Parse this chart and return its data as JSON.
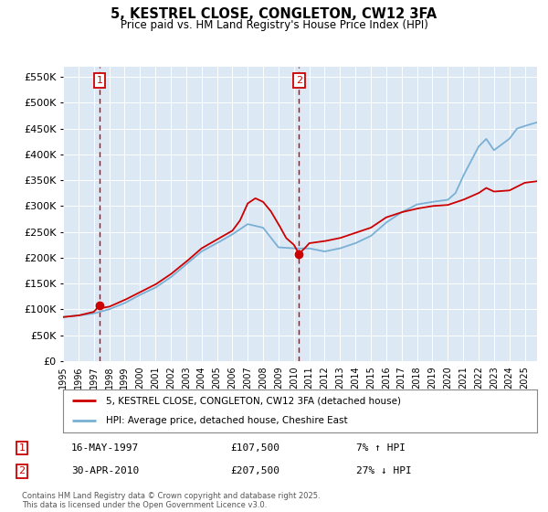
{
  "title": "5, KESTREL CLOSE, CONGLETON, CW12 3FA",
  "subtitle": "Price paid vs. HM Land Registry's House Price Index (HPI)",
  "ylabel_ticks": [
    "£0",
    "£50K",
    "£100K",
    "£150K",
    "£200K",
    "£250K",
    "£300K",
    "£350K",
    "£400K",
    "£450K",
    "£500K",
    "£550K"
  ],
  "ytick_values": [
    0,
    50000,
    100000,
    150000,
    200000,
    250000,
    300000,
    350000,
    400000,
    450000,
    500000,
    550000
  ],
  "ylim": [
    0,
    570000
  ],
  "xlim_start": 1995.0,
  "xlim_end": 2025.8,
  "xtick_years": [
    1995,
    1996,
    1997,
    1998,
    1999,
    2000,
    2001,
    2002,
    2003,
    2004,
    2005,
    2006,
    2007,
    2008,
    2009,
    2010,
    2011,
    2012,
    2013,
    2014,
    2015,
    2016,
    2017,
    2018,
    2019,
    2020,
    2021,
    2022,
    2023,
    2024,
    2025
  ],
  "sale1_x": 1997.37,
  "sale1_y": 107500,
  "sale1_label": "1",
  "sale2_x": 2010.33,
  "sale2_y": 207500,
  "sale2_label": "2",
  "legend_house_label": "5, KESTREL CLOSE, CONGLETON, CW12 3FA (detached house)",
  "legend_hpi_label": "HPI: Average price, detached house, Cheshire East",
  "annotation1_date": "16-MAY-1997",
  "annotation1_price": "£107,500",
  "annotation1_hpi": "7% ↑ HPI",
  "annotation2_date": "30-APR-2010",
  "annotation2_price": "£207,500",
  "annotation2_hpi": "27% ↓ HPI",
  "footnote": "Contains HM Land Registry data © Crown copyright and database right 2025.\nThis data is licensed under the Open Government Licence v3.0.",
  "house_color": "#cc0000",
  "hpi_color": "#7ab0d4",
  "plot_bg": "#dde8f5",
  "grid_color": "#ffffff",
  "vline_color": "#cc0000",
  "hpi_years": [
    1995,
    1996,
    1997,
    1997.5,
    1998,
    1999,
    2000,
    2001,
    2002,
    2003,
    2004,
    2005,
    2006,
    2007,
    2008,
    2009,
    2010,
    2011,
    2012,
    2013,
    2014,
    2015,
    2016,
    2017,
    2018,
    2019,
    2020,
    2020.5,
    2021,
    2022,
    2022.5,
    2023,
    2024,
    2024.5,
    2025,
    2025.8
  ],
  "hpi_vals": [
    85000,
    88000,
    92000,
    96000,
    100000,
    112000,
    128000,
    142000,
    162000,
    187000,
    212000,
    228000,
    245000,
    265000,
    258000,
    220000,
    218000,
    218000,
    212000,
    218000,
    228000,
    242000,
    268000,
    288000,
    303000,
    308000,
    312000,
    325000,
    358000,
    415000,
    430000,
    408000,
    430000,
    450000,
    455000,
    462000
  ],
  "house_years": [
    1995,
    1996,
    1997,
    1997.37,
    1997.6,
    1998,
    1999,
    2000,
    2001,
    2002,
    2003,
    2004,
    2005,
    2006,
    2006.5,
    2007,
    2007.5,
    2008,
    2008.5,
    2009,
    2009.5,
    2010,
    2010.33,
    2010.7,
    2011,
    2012,
    2013,
    2014,
    2015,
    2016,
    2017,
    2018,
    2019,
    2020,
    2021,
    2022,
    2022.5,
    2023,
    2024,
    2025,
    2025.8
  ],
  "house_vals": [
    85000,
    88000,
    95000,
    107500,
    103000,
    105000,
    118000,
    133000,
    148000,
    168000,
    192000,
    218000,
    235000,
    252000,
    272000,
    305000,
    315000,
    308000,
    290000,
    265000,
    238000,
    225000,
    207500,
    218000,
    228000,
    232000,
    238000,
    248000,
    258000,
    278000,
    288000,
    295000,
    300000,
    302000,
    312000,
    325000,
    335000,
    328000,
    330000,
    345000,
    348000
  ]
}
